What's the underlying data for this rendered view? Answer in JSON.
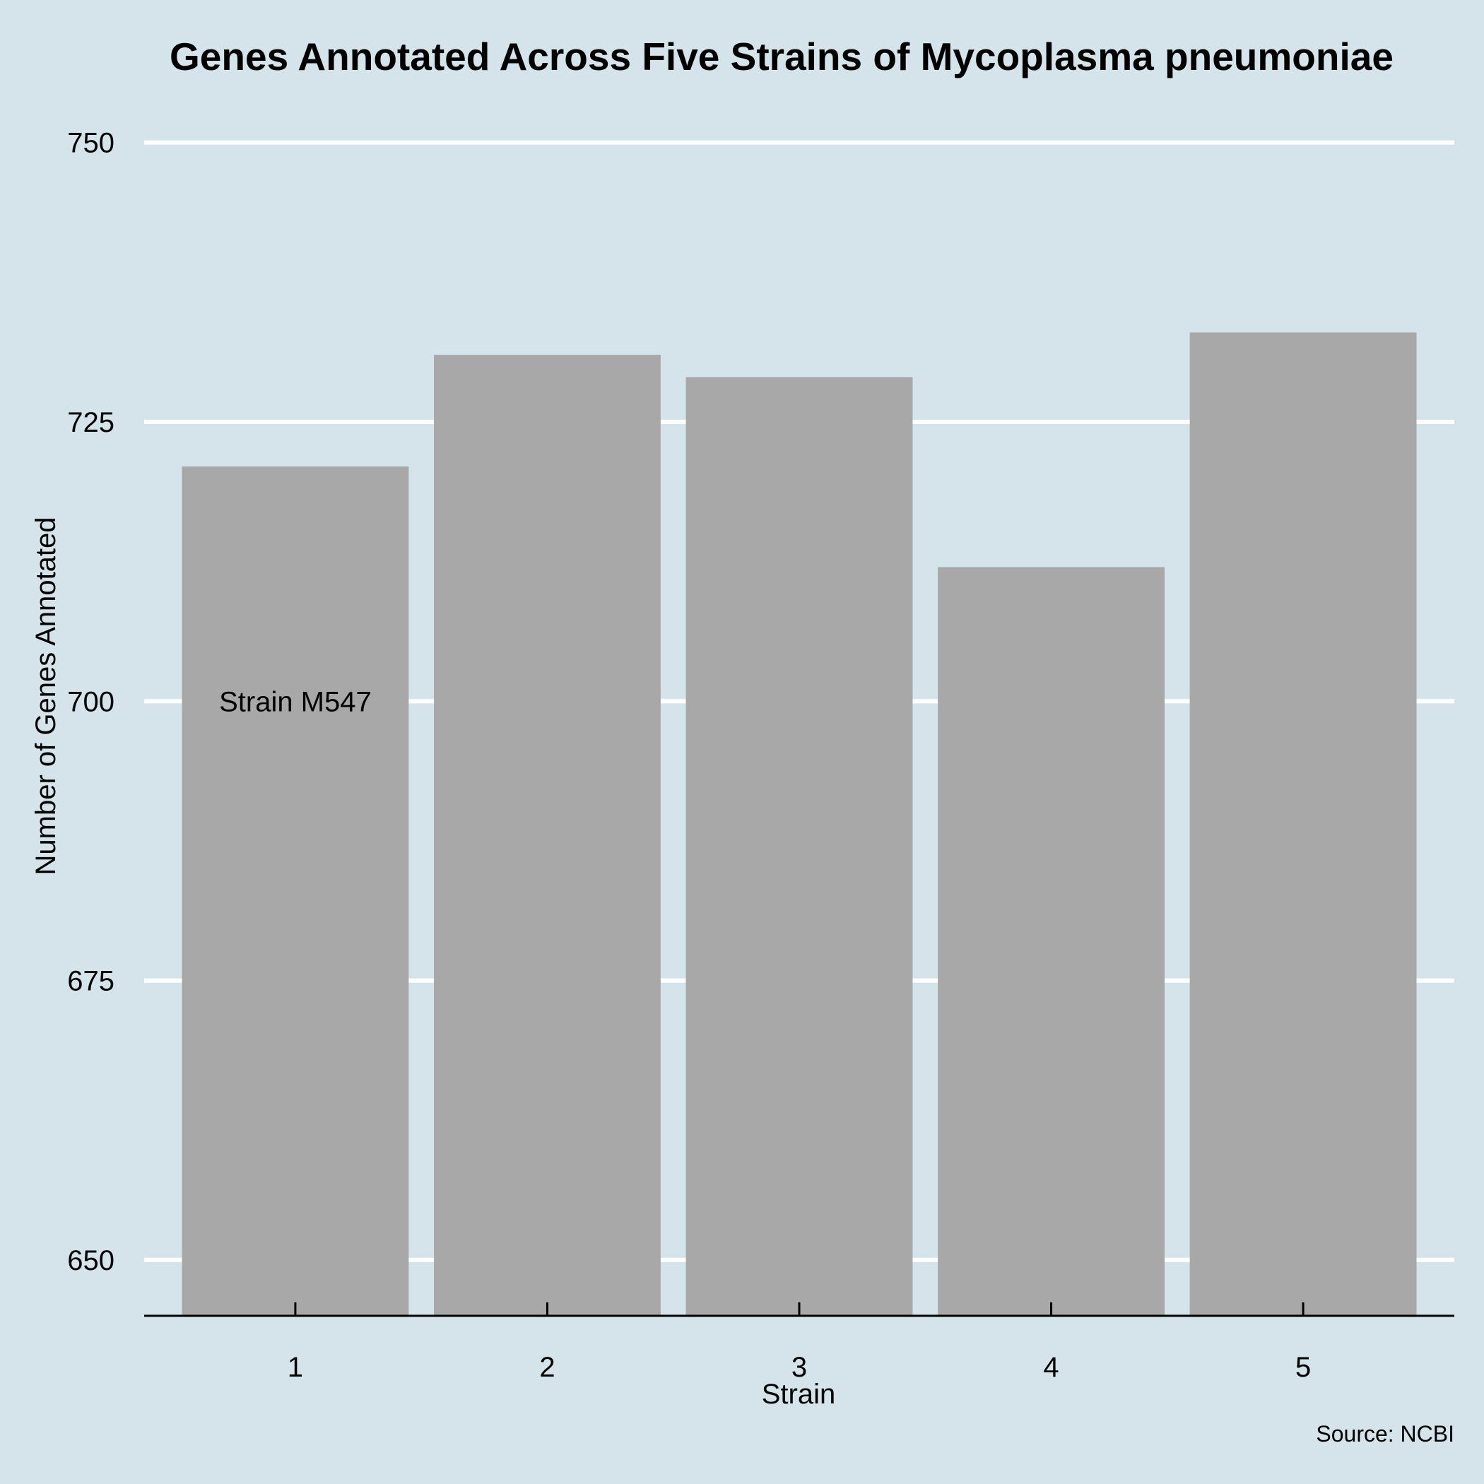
{
  "chart_data": {
    "type": "bar",
    "title": "Genes Annotated Across Five Strains of Mycoplasma pneumoniae",
    "xlabel": "Strain",
    "ylabel": "Number of Genes Annotated",
    "categories": [
      "1",
      "2",
      "3",
      "4",
      "5"
    ],
    "values": [
      721,
      731,
      729,
      712,
      733
    ],
    "ylim": [
      645,
      752
    ],
    "yticks": [
      650,
      675,
      700,
      725,
      750
    ],
    "ytick_labels": [
      "650",
      "675",
      "700",
      "725",
      "750"
    ],
    "grid": "horizontal",
    "legend": "none",
    "annotations": [
      {
        "text": "Strain M547",
        "category": "1",
        "y": 700
      }
    ],
    "caption": "Source: NCBI",
    "colors": {
      "background": "#d5e4eb",
      "bar": "#a8a8a8",
      "grid": "#ffffff",
      "axis": "#000000"
    }
  }
}
